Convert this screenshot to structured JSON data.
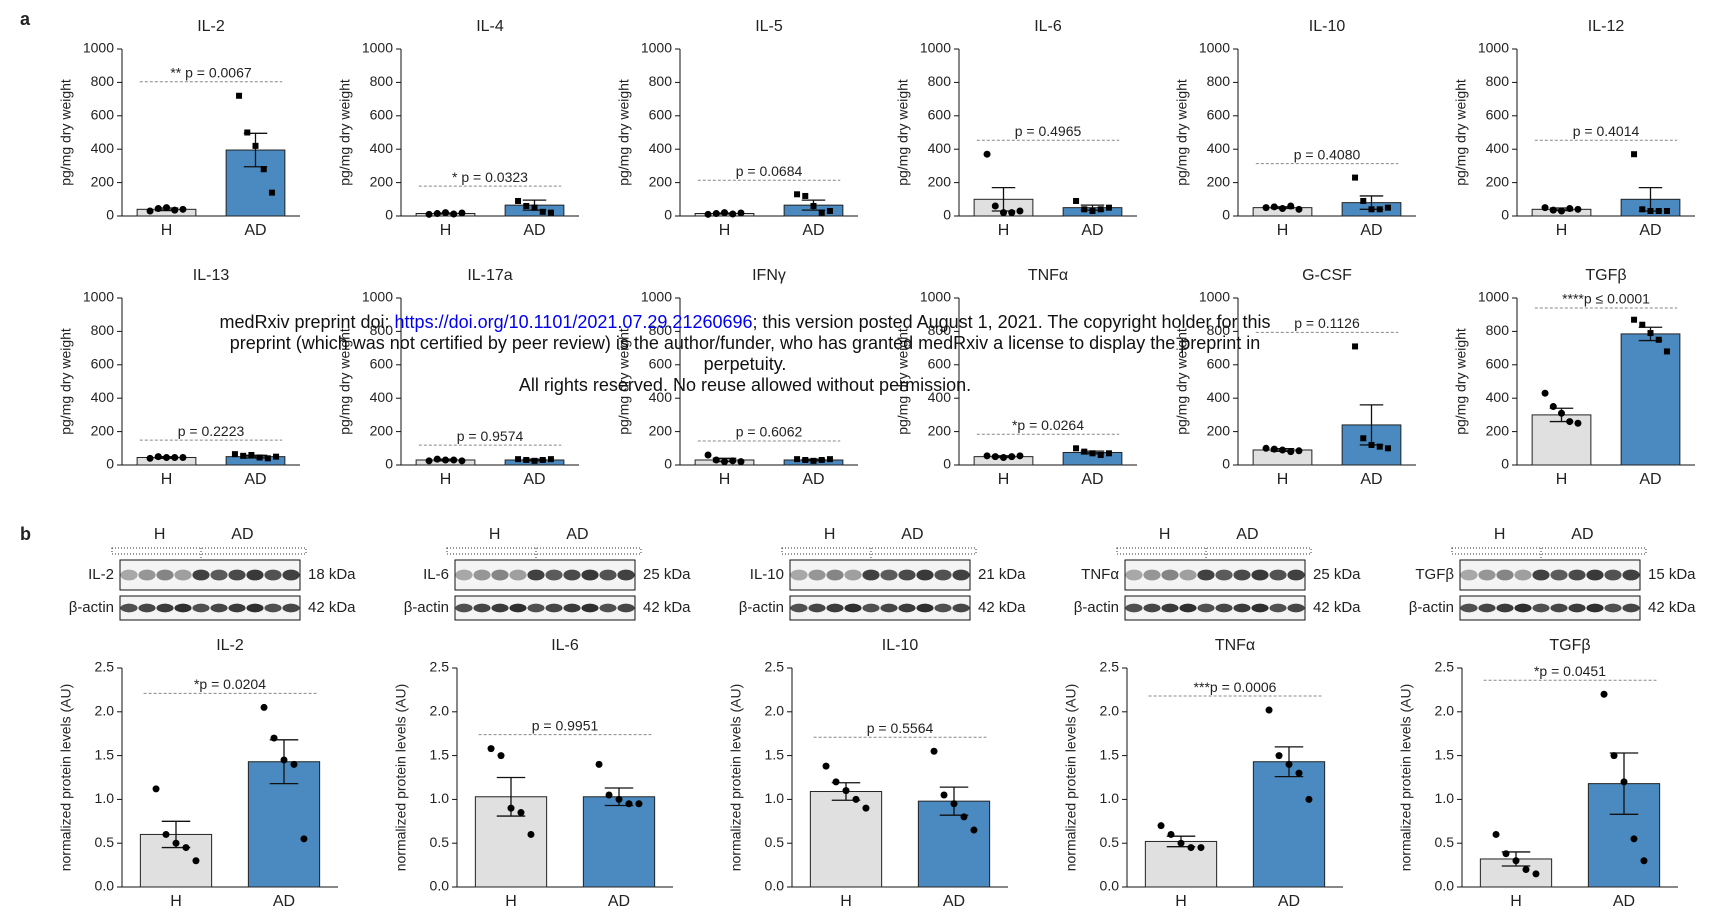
{
  "panels": [
    "a",
    "b"
  ],
  "watermark": {
    "prefix": "medRxiv preprint doi: ",
    "link": "https://doi.org/10.1101/2021.07.29.21260696",
    "suffix": "; this version posted August 1, 2021. The copyright holder for this",
    "line2": "preprint (which was not certified by peer review) is the author/funder, who has granted medRxiv a license to display the preprint in",
    "line3": "perpetuity.",
    "line4": "All rights reserved. No reuse allowed without permission."
  },
  "blots": [
    {
      "groups": [
        "H",
        "AD"
      ],
      "protein": "IL-2",
      "protein_kda": "18 kDa",
      "control": "β-actin",
      "control_kda": "42 kDa"
    },
    {
      "groups": [
        "H",
        "AD"
      ],
      "protein": "IL-6",
      "protein_kda": "25 kDa",
      "control": "β-actin",
      "control_kda": "42 kDa"
    },
    {
      "groups": [
        "H",
        "AD"
      ],
      "protein": "IL-10",
      "protein_kda": "21 kDa",
      "control": "β-actin",
      "control_kda": "42 kDa"
    },
    {
      "groups": [
        "H",
        "AD"
      ],
      "protein": "TNFα",
      "protein_kda": "25 kDa",
      "control": "β-actin",
      "control_kda": "42 kDa"
    },
    {
      "groups": [
        "H",
        "AD"
      ],
      "protein": "TGFβ",
      "protein_kda": "15 kDa",
      "control": "β-actin",
      "control_kda": "42 kDa"
    }
  ],
  "chart_data": [
    {
      "type": "bar",
      "title": "IL-2",
      "ylabel": "pg/mg dry weight",
      "categories": [
        "H",
        "AD"
      ],
      "values": [
        40,
        395
      ],
      "errors": [
        8,
        100
      ],
      "points": [
        [
          30,
          45,
          50,
          35,
          40
        ],
        [
          720,
          500,
          420,
          280,
          140
        ]
      ],
      "markers": [
        "circle",
        "square"
      ],
      "colors": [
        "#e0e0e0",
        "#4a8ac0"
      ],
      "annotation": "** p = 0.0067",
      "ylim": [
        0,
        1000
      ],
      "yticks": [
        0,
        200,
        400,
        600,
        800,
        1000
      ]
    },
    {
      "type": "bar",
      "title": "IL-4",
      "ylabel": "pg/mg dry weight",
      "categories": [
        "H",
        "AD"
      ],
      "values": [
        15,
        65
      ],
      "errors": [
        3,
        30
      ],
      "points": [
        [
          10,
          15,
          20,
          12,
          18
        ],
        [
          90,
          60,
          50,
          25,
          20
        ]
      ],
      "markers": [
        "circle",
        "square"
      ],
      "colors": [
        "#e0e0e0",
        "#4a8ac0"
      ],
      "annotation": "* p = 0.0323",
      "ylim": [
        0,
        1000
      ],
      "yticks": [
        0,
        200,
        400,
        600,
        800,
        1000
      ]
    },
    {
      "type": "bar",
      "title": "IL-5",
      "ylabel": "pg/mg dry weight",
      "categories": [
        "H",
        "AD"
      ],
      "values": [
        15,
        65
      ],
      "errors": [
        3,
        30
      ],
      "points": [
        [
          10,
          15,
          20,
          12,
          18
        ],
        [
          130,
          120,
          60,
          20,
          30
        ]
      ],
      "markers": [
        "circle",
        "square"
      ],
      "colors": [
        "#e0e0e0",
        "#4a8ac0"
      ],
      "annotation": "p = 0.0684",
      "ylim": [
        0,
        1000
      ],
      "yticks": [
        0,
        200,
        400,
        600,
        800,
        1000
      ]
    },
    {
      "type": "bar",
      "title": "IL-6",
      "ylabel": "pg/mg dry weight",
      "categories": [
        "H",
        "AD"
      ],
      "values": [
        100,
        50
      ],
      "errors": [
        70,
        15
      ],
      "points": [
        [
          370,
          60,
          20,
          20,
          30
        ],
        [
          90,
          40,
          30,
          40,
          50
        ]
      ],
      "markers": [
        "circle",
        "square"
      ],
      "colors": [
        "#e0e0e0",
        "#4a8ac0"
      ],
      "annotation": "p = 0.4965",
      "ylim": [
        0,
        1000
      ],
      "yticks": [
        0,
        200,
        400,
        600,
        800,
        1000
      ]
    },
    {
      "type": "bar",
      "title": "IL-10",
      "ylabel": "pg/mg dry weight",
      "categories": [
        "H",
        "AD"
      ],
      "values": [
        50,
        80
      ],
      "errors": [
        5,
        40
      ],
      "points": [
        [
          50,
          55,
          45,
          60,
          40
        ],
        [
          230,
          90,
          40,
          40,
          50
        ]
      ],
      "markers": [
        "circle",
        "square"
      ],
      "colors": [
        "#e0e0e0",
        "#4a8ac0"
      ],
      "annotation": "p = 0.4080",
      "ylim": [
        0,
        1000
      ],
      "yticks": [
        0,
        200,
        400,
        600,
        800,
        1000
      ]
    },
    {
      "type": "bar",
      "title": "IL-12",
      "ylabel": "pg/mg dry weight",
      "categories": [
        "H",
        "AD"
      ],
      "values": [
        40,
        100
      ],
      "errors": [
        8,
        70
      ],
      "points": [
        [
          50,
          35,
          30,
          45,
          40
        ],
        [
          370,
          40,
          30,
          30,
          30
        ]
      ],
      "markers": [
        "circle",
        "square"
      ],
      "colors": [
        "#e0e0e0",
        "#4a8ac0"
      ],
      "annotation": "p = 0.4014",
      "ylim": [
        0,
        1000
      ],
      "yticks": [
        0,
        200,
        400,
        600,
        800,
        1000
      ]
    },
    {
      "type": "bar",
      "title": "IL-13",
      "ylabel": "pg/mg dry weight",
      "categories": [
        "H",
        "AD"
      ],
      "values": [
        45,
        50
      ],
      "errors": [
        5,
        8
      ],
      "points": [
        [
          40,
          50,
          45,
          45,
          45
        ],
        [
          65,
          55,
          60,
          45,
          40,
          50
        ]
      ],
      "markers": [
        "circle",
        "square"
      ],
      "colors": [
        "#e0e0e0",
        "#4a8ac0"
      ],
      "annotation": "p = 0.2223",
      "ylim": [
        0,
        1000
      ],
      "yticks": [
        0,
        200,
        400,
        600,
        800,
        1000
      ]
    },
    {
      "type": "bar",
      "title": "IL-17a",
      "ylabel": "pg/mg dry weight",
      "categories": [
        "H",
        "AD"
      ],
      "values": [
        30,
        30
      ],
      "errors": [
        5,
        5
      ],
      "points": [
        [
          25,
          35,
          30,
          30,
          25
        ],
        [
          35,
          30,
          25,
          30,
          35
        ]
      ],
      "markers": [
        "circle",
        "square"
      ],
      "colors": [
        "#e0e0e0",
        "#4a8ac0"
      ],
      "annotation": "p = 0.9574",
      "ylim": [
        0,
        1000
      ],
      "yticks": [
        0,
        200,
        400,
        600,
        800,
        1000
      ]
    },
    {
      "type": "bar",
      "title": "IFNγ",
      "ylabel": "pg/mg dry weight",
      "categories": [
        "H",
        "AD"
      ],
      "values": [
        30,
        30
      ],
      "errors": [
        10,
        5
      ],
      "points": [
        [
          60,
          30,
          20,
          25,
          20
        ],
        [
          35,
          30,
          25,
          30,
          35
        ]
      ],
      "markers": [
        "circle",
        "square"
      ],
      "colors": [
        "#e0e0e0",
        "#4a8ac0"
      ],
      "annotation": "p = 0.6062",
      "ylim": [
        0,
        1000
      ],
      "yticks": [
        0,
        200,
        400,
        600,
        800,
        1000
      ]
    },
    {
      "type": "bar",
      "title": "TNFα",
      "ylabel": "pg/mg dry weight",
      "categories": [
        "H",
        "AD"
      ],
      "values": [
        50,
        75
      ],
      "errors": [
        5,
        8
      ],
      "points": [
        [
          55,
          50,
          45,
          50,
          55
        ],
        [
          100,
          80,
          70,
          60,
          70
        ]
      ],
      "markers": [
        "circle",
        "square"
      ],
      "colors": [
        "#e0e0e0",
        "#4a8ac0"
      ],
      "annotation": "*p = 0.0264",
      "ylim": [
        0,
        1000
      ],
      "yticks": [
        0,
        200,
        400,
        600,
        800,
        1000
      ]
    },
    {
      "type": "bar",
      "title": "G-CSF",
      "ylabel": "pg/mg dry weight",
      "categories": [
        "H",
        "AD"
      ],
      "values": [
        90,
        240
      ],
      "errors": [
        8,
        120
      ],
      "points": [
        [
          100,
          95,
          90,
          80,
          85
        ],
        [
          710,
          160,
          120,
          110,
          100
        ]
      ],
      "markers": [
        "circle",
        "square"
      ],
      "colors": [
        "#e0e0e0",
        "#4a8ac0"
      ],
      "annotation": "p = 0.1126",
      "ylim": [
        0,
        1000
      ],
      "yticks": [
        0,
        200,
        400,
        600,
        800,
        1000
      ]
    },
    {
      "type": "bar",
      "title": "TGFβ",
      "ylabel": "pg/mg dry weight",
      "categories": [
        "H",
        "AD"
      ],
      "values": [
        300,
        785
      ],
      "errors": [
        40,
        40
      ],
      "points": [
        [
          430,
          350,
          310,
          260,
          250
        ],
        [
          870,
          840,
          790,
          750,
          680
        ]
      ],
      "markers": [
        "circle",
        "square"
      ],
      "colors": [
        "#e0e0e0",
        "#4a8ac0"
      ],
      "annotation": "****p ≤ 0.0001",
      "ylim": [
        0,
        1000
      ],
      "yticks": [
        0,
        200,
        400,
        600,
        800,
        1000
      ]
    },
    {
      "type": "bar",
      "title": "IL-2",
      "ylabel": "normalized protein levels (AU)",
      "categories": [
        "H",
        "AD"
      ],
      "values": [
        0.6,
        1.43
      ],
      "errors": [
        0.15,
        0.25
      ],
      "points": [
        [
          1.12,
          0.6,
          0.5,
          0.45,
          0.3
        ],
        [
          2.05,
          1.7,
          1.45,
          1.4,
          0.55
        ]
      ],
      "markers": [
        "circle",
        "circle"
      ],
      "colors": [
        "#e0e0e0",
        "#4a8ac0"
      ],
      "annotation": "*p = 0.0204",
      "ylim": [
        0,
        2.5
      ],
      "yticks": [
        {
          "value": 0,
          "label": "0.0"
        },
        0.5,
        {
          "value": 1,
          "label": "1.0"
        },
        1.5,
        {
          "value": 2,
          "label": "2.0"
        },
        2.5
      ]
    },
    {
      "type": "bar",
      "title": "IL-6",
      "ylabel": "normalized protein levels (AU)",
      "categories": [
        "H",
        "AD"
      ],
      "values": [
        1.03,
        1.03
      ],
      "errors": [
        0.22,
        0.1
      ],
      "points": [
        [
          1.58,
          1.5,
          0.9,
          0.85,
          0.6
        ],
        [
          1.4,
          1.05,
          1.0,
          0.95,
          0.95
        ]
      ],
      "markers": [
        "circle",
        "circle"
      ],
      "colors": [
        "#e0e0e0",
        "#4a8ac0"
      ],
      "annotation": "p = 0.9951",
      "ylim": [
        0,
        2.5
      ],
      "yticks": [
        {
          "value": 0,
          "label": "0.0"
        },
        0.5,
        {
          "value": 1,
          "label": "1.0"
        },
        1.5,
        {
          "value": 2,
          "label": "2.0"
        },
        2.5
      ]
    },
    {
      "type": "bar",
      "title": "IL-10",
      "ylabel": "normalized protein levels (AU)",
      "categories": [
        "H",
        "AD"
      ],
      "values": [
        1.09,
        0.98
      ],
      "errors": [
        0.1,
        0.16
      ],
      "points": [
        [
          1.38,
          1.2,
          1.1,
          1.0,
          0.9
        ],
        [
          1.55,
          1.05,
          0.95,
          0.8,
          0.65
        ]
      ],
      "markers": [
        "circle",
        "circle"
      ],
      "colors": [
        "#e0e0e0",
        "#4a8ac0"
      ],
      "annotation": "p = 0.5564",
      "ylim": [
        0,
        2.5
      ],
      "yticks": [
        {
          "value": 0,
          "label": "0.0"
        },
        0.5,
        {
          "value": 1,
          "label": "1.0"
        },
        1.5,
        {
          "value": 2,
          "label": "2.0"
        },
        2.5
      ]
    },
    {
      "type": "bar",
      "title": "TNFα",
      "ylabel": "normalized protein levels (AU)",
      "categories": [
        "H",
        "AD"
      ],
      "values": [
        0.52,
        1.43
      ],
      "errors": [
        0.06,
        0.17
      ],
      "points": [
        [
          0.7,
          0.6,
          0.5,
          0.45,
          0.45
        ],
        [
          2.02,
          1.5,
          1.4,
          1.3,
          1.0
        ]
      ],
      "markers": [
        "circle",
        "circle"
      ],
      "colors": [
        "#e0e0e0",
        "#4a8ac0"
      ],
      "annotation": "***p = 0.0006",
      "ylim": [
        0,
        2.5
      ],
      "yticks": [
        {
          "value": 0,
          "label": "0.0"
        },
        0.5,
        {
          "value": 1,
          "label": "1.0"
        },
        1.5,
        {
          "value": 2,
          "label": "2.0"
        },
        2.5
      ]
    },
    {
      "type": "bar",
      "title": "TGFβ",
      "ylabel": "normalized protein levels (AU)",
      "categories": [
        "H",
        "AD"
      ],
      "values": [
        0.32,
        1.18
      ],
      "errors": [
        0.08,
        0.35
      ],
      "points": [
        [
          0.6,
          0.38,
          0.3,
          0.2,
          0.15
        ],
        [
          2.2,
          1.5,
          1.2,
          0.55,
          0.3
        ]
      ],
      "markers": [
        "circle",
        "circle"
      ],
      "colors": [
        "#e0e0e0",
        "#4a8ac0"
      ],
      "annotation": "*p = 0.0451",
      "ylim": [
        0,
        2.5
      ],
      "yticks": [
        {
          "value": 0,
          "label": "0.0"
        },
        0.5,
        {
          "value": 1,
          "label": "1.0"
        },
        1.5,
        {
          "value": 2,
          "label": "2.0"
        },
        2.5
      ]
    }
  ]
}
